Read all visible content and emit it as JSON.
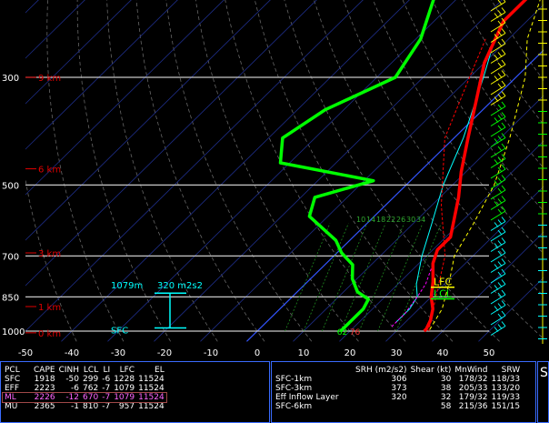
{
  "chart_data": {
    "type": "skew-t",
    "temperature_axis": {
      "ticks": [
        -50,
        -40,
        -30,
        -20,
        -10,
        0,
        10,
        20,
        30,
        40,
        50
      ],
      "range": [
        -50,
        50
      ]
    },
    "pressure_axis": {
      "ticks": [
        300,
        500,
        700,
        850,
        1000
      ],
      "range": [
        1050,
        200
      ],
      "log_scale": true
    },
    "height_labels": [
      "9 km",
      "6 km",
      "3 km",
      "1 km",
      "0 km"
    ],
    "height_label_pressures": [
      300,
      463,
      690,
      890,
      1008
    ],
    "temperature_profile": {
      "color": "#ff0000",
      "points": [
        [
          -15,
          200
        ],
        [
          -15,
          230
        ],
        [
          -10,
          280
        ],
        [
          -4,
          330
        ],
        [
          3,
          400
        ],
        [
          9,
          470
        ],
        [
          14,
          530
        ],
        [
          18,
          590
        ],
        [
          21,
          640
        ],
        [
          21,
          680
        ],
        [
          23,
          725
        ],
        [
          27,
          790
        ],
        [
          30,
          850
        ],
        [
          33,
          900
        ],
        [
          35,
          950
        ],
        [
          36,
          990
        ],
        [
          36,
          1000
        ]
      ]
    },
    "dewpoint_profile": {
      "color": "#00ff00",
      "points": [
        [
          -36,
          200
        ],
        [
          -29,
          250
        ],
        [
          -26,
          300
        ],
        [
          -34,
          350
        ],
        [
          -37,
          400
        ],
        [
          -32,
          450
        ],
        [
          -8,
          490
        ],
        [
          -17,
          530
        ],
        [
          -14,
          580
        ],
        [
          -3,
          650
        ],
        [
          1,
          690
        ],
        [
          6,
          730
        ],
        [
          9,
          780
        ],
        [
          13,
          830
        ],
        [
          17,
          860
        ],
        [
          18,
          900
        ],
        [
          18,
          950
        ],
        [
          18,
          1000
        ]
      ]
    },
    "virtual_temp_profile": {
      "color": "#ff0000",
      "points": [
        [
          -15,
          250
        ],
        [
          -10,
          300
        ],
        [
          -2,
          400
        ],
        [
          12,
          550
        ],
        [
          24,
          700
        ],
        [
          31,
          850
        ],
        [
          37,
          1000
        ]
      ]
    },
    "parcel_trace": {
      "color": "#ffff00",
      "points": [
        [
          -13,
          200
        ],
        [
          -6,
          250
        ],
        [
          2,
          300
        ],
        [
          12,
          400
        ],
        [
          19,
          500
        ],
        [
          23,
          600
        ],
        [
          26,
          700
        ],
        [
          31,
          800
        ],
        [
          35,
          900
        ],
        [
          37,
          1000
        ]
      ]
    },
    "wetbulb_trace": {
      "color": "#00ffff",
      "points": [
        [
          -13,
          250
        ],
        [
          -7,
          300
        ],
        [
          2,
          400
        ],
        [
          8,
          500
        ],
        [
          14,
          600
        ],
        [
          19,
          700
        ],
        [
          24,
          800
        ],
        [
          27,
          850
        ],
        [
          28,
          900
        ],
        [
          28,
          960
        ]
      ]
    },
    "downdraft_trace": {
      "color": "#ff00ff",
      "points": [
        [
          22,
          700
        ],
        [
          26,
          800
        ],
        [
          27,
          850
        ],
        [
          28,
          920
        ],
        [
          28,
          980
        ]
      ]
    },
    "mixing_ratio_labels": [
      "10",
      "14",
      "18",
      "22",
      "26",
      "30",
      "34"
    ],
    "levels": {
      "LFC": {
        "label": "LFC",
        "pressure": 812,
        "color": "#ffff00"
      },
      "LCL": {
        "label": "LCL",
        "pressure": 858,
        "color": "#00ff00"
      }
    },
    "effective_inflow": {
      "top_label": "1079m",
      "srh_label": "320 m2s2",
      "bottom_label": "SFC"
    },
    "surface_values": {
      "dewpoint": "62",
      "temperature": "76"
    },
    "grid": true
  },
  "indices": {
    "headers": [
      "PCL",
      "CAPE",
      "CINH",
      "LCL",
      "LI",
      "LFC",
      "EL"
    ],
    "rows": [
      [
        "SFC",
        "1918",
        "-50",
        "299",
        "-6",
        "1228",
        "11524"
      ],
      [
        "EFF",
        "2223",
        "-6",
        "762",
        "-7",
        "1079",
        "11524"
      ],
      [
        "ML",
        "2226",
        "-12",
        "670",
        "-7",
        "1079",
        "11524"
      ],
      [
        "MU",
        "2365",
        "-1",
        "810",
        "-7",
        "957",
        "11524"
      ]
    ]
  },
  "kinematics": {
    "headers": [
      "",
      "SRH (m2/s2)",
      "Shear (kt)",
      "MnWind",
      "SRW"
    ],
    "rows": [
      [
        "SFC-1km",
        "306",
        "30",
        "178/32",
        "118/33"
      ],
      [
        "SFC-3km",
        "373",
        "38",
        "205/33",
        "133/20"
      ],
      [
        "Eff Inflow Layer",
        "320",
        "32",
        "179/32",
        "119/33"
      ],
      [
        "SFC-6km",
        "",
        "58",
        "215/36",
        "151/15"
      ]
    ]
  },
  "edge_label": "S",
  "colors": {
    "frame": "#3a6cff",
    "isobar": "#c8c8c8",
    "height": "#e00000",
    "wind_barb_upper": "#ffff00",
    "wind_barb_mid": "#00ff00",
    "wind_barb_low": "#00ffff"
  }
}
